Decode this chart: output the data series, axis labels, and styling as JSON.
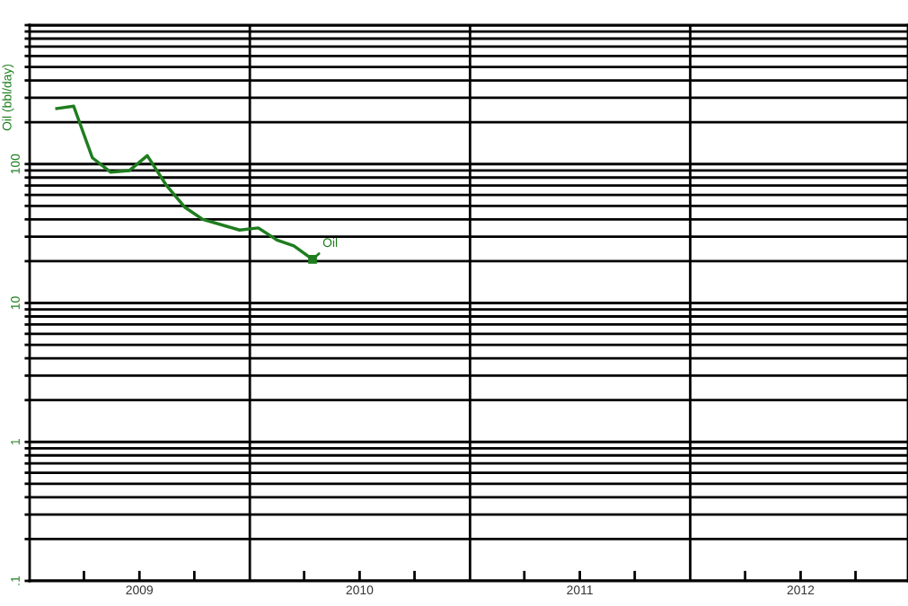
{
  "chart_data": {
    "type": "line",
    "ylabel": "Oil (bbl/day)",
    "log": "y",
    "x": [
      "2009-02-15",
      "2009-03-15",
      "2009-04-15",
      "2009-05-15",
      "2009-06-15",
      "2009-07-15",
      "2009-08-15",
      "2009-09-15",
      "2009-10-15",
      "2009-12-15",
      "2010-01-15",
      "2010-02-15",
      "2010-03-15",
      "2010-04-15"
    ],
    "series": [
      {
        "color": "#1e7d1e",
        "values": [
          251,
          261,
          111,
          87.5,
          89.7,
          115,
          71,
          49,
          40,
          33.5,
          34.7,
          28.4,
          25.8,
          20.6
        ]
      }
    ],
    "xlim": [
      "2009-01-01",
      "2012-12-27"
    ],
    "xticks": [
      {
        "value": "2009-04-01",
        "label": null
      },
      {
        "value": "2009-07-02",
        "label": "2009"
      },
      {
        "value": "2009-10-01",
        "label": null
      },
      {
        "value": "2010-04-01",
        "label": null
      },
      {
        "value": "2010-07-02",
        "label": "2010"
      },
      {
        "value": "2010-10-01",
        "label": null
      },
      {
        "value": "2011-04-01",
        "label": null
      },
      {
        "value": "2011-07-02",
        "label": "2011"
      },
      {
        "value": "2011-10-01",
        "label": null
      },
      {
        "value": "2012-04-01",
        "label": null
      },
      {
        "value": "2012-07-02",
        "label": "2012"
      },
      {
        "value": "2012-10-01",
        "label": null
      }
    ],
    "ylim": [
      0.1,
      1000
    ],
    "yticks": [
      {
        "value": 0.1,
        "label": ".1"
      },
      {
        "value": 0.2,
        "label": null
      },
      {
        "value": 0.3,
        "label": null
      },
      {
        "value": 0.4,
        "label": null
      },
      {
        "value": 0.5,
        "label": null
      },
      {
        "value": 0.6,
        "label": null
      },
      {
        "value": 0.7,
        "label": null
      },
      {
        "value": 0.8,
        "label": null
      },
      {
        "value": 0.9,
        "label": null
      },
      1,
      {
        "value": 2,
        "label": null
      },
      {
        "value": 3,
        "label": null
      },
      {
        "value": 4,
        "label": null
      },
      {
        "value": 5,
        "label": null
      },
      {
        "value": 6,
        "label": null
      },
      {
        "value": 7,
        "label": null
      },
      {
        "value": 8,
        "label": null
      },
      {
        "value": 9,
        "label": null
      },
      10,
      {
        "value": 20,
        "label": null
      },
      {
        "value": 30,
        "label": null
      },
      {
        "value": 40,
        "label": null
      },
      {
        "value": 50,
        "label": null
      },
      {
        "value": 60,
        "label": null
      },
      {
        "value": 70,
        "label": null
      },
      {
        "value": 80,
        "label": null
      },
      {
        "value": 90,
        "label": null
      },
      100,
      {
        "value": 200,
        "label": null
      },
      {
        "value": 300,
        "label": null
      },
      {
        "value": 400,
        "label": null
      },
      {
        "value": 500,
        "label": null
      },
      {
        "value": 600,
        "label": null
      },
      {
        "value": 700,
        "label": null
      },
      {
        "value": 800,
        "label": null
      },
      {
        "value": 900,
        "label": null
      },
      {
        "value": 1000,
        "label": null
      }
    ],
    "grid": "y",
    "ref_lines": [
      {
        "axis": "x",
        "value": "2010-01-01",
        "label": null,
        "color": "#000000"
      },
      {
        "axis": "x",
        "value": "2011-01-01",
        "label": null,
        "color": "#000000"
      },
      {
        "axis": "x",
        "value": "2012-01-01",
        "label": null,
        "color": "#000000"
      }
    ],
    "annotations": [
      {
        "text": "Oil",
        "x": "2010-04-15",
        "y": 20.6
      }
    ],
    "marker": "none",
    "line_style": "solid",
    "legend": false
  }
}
